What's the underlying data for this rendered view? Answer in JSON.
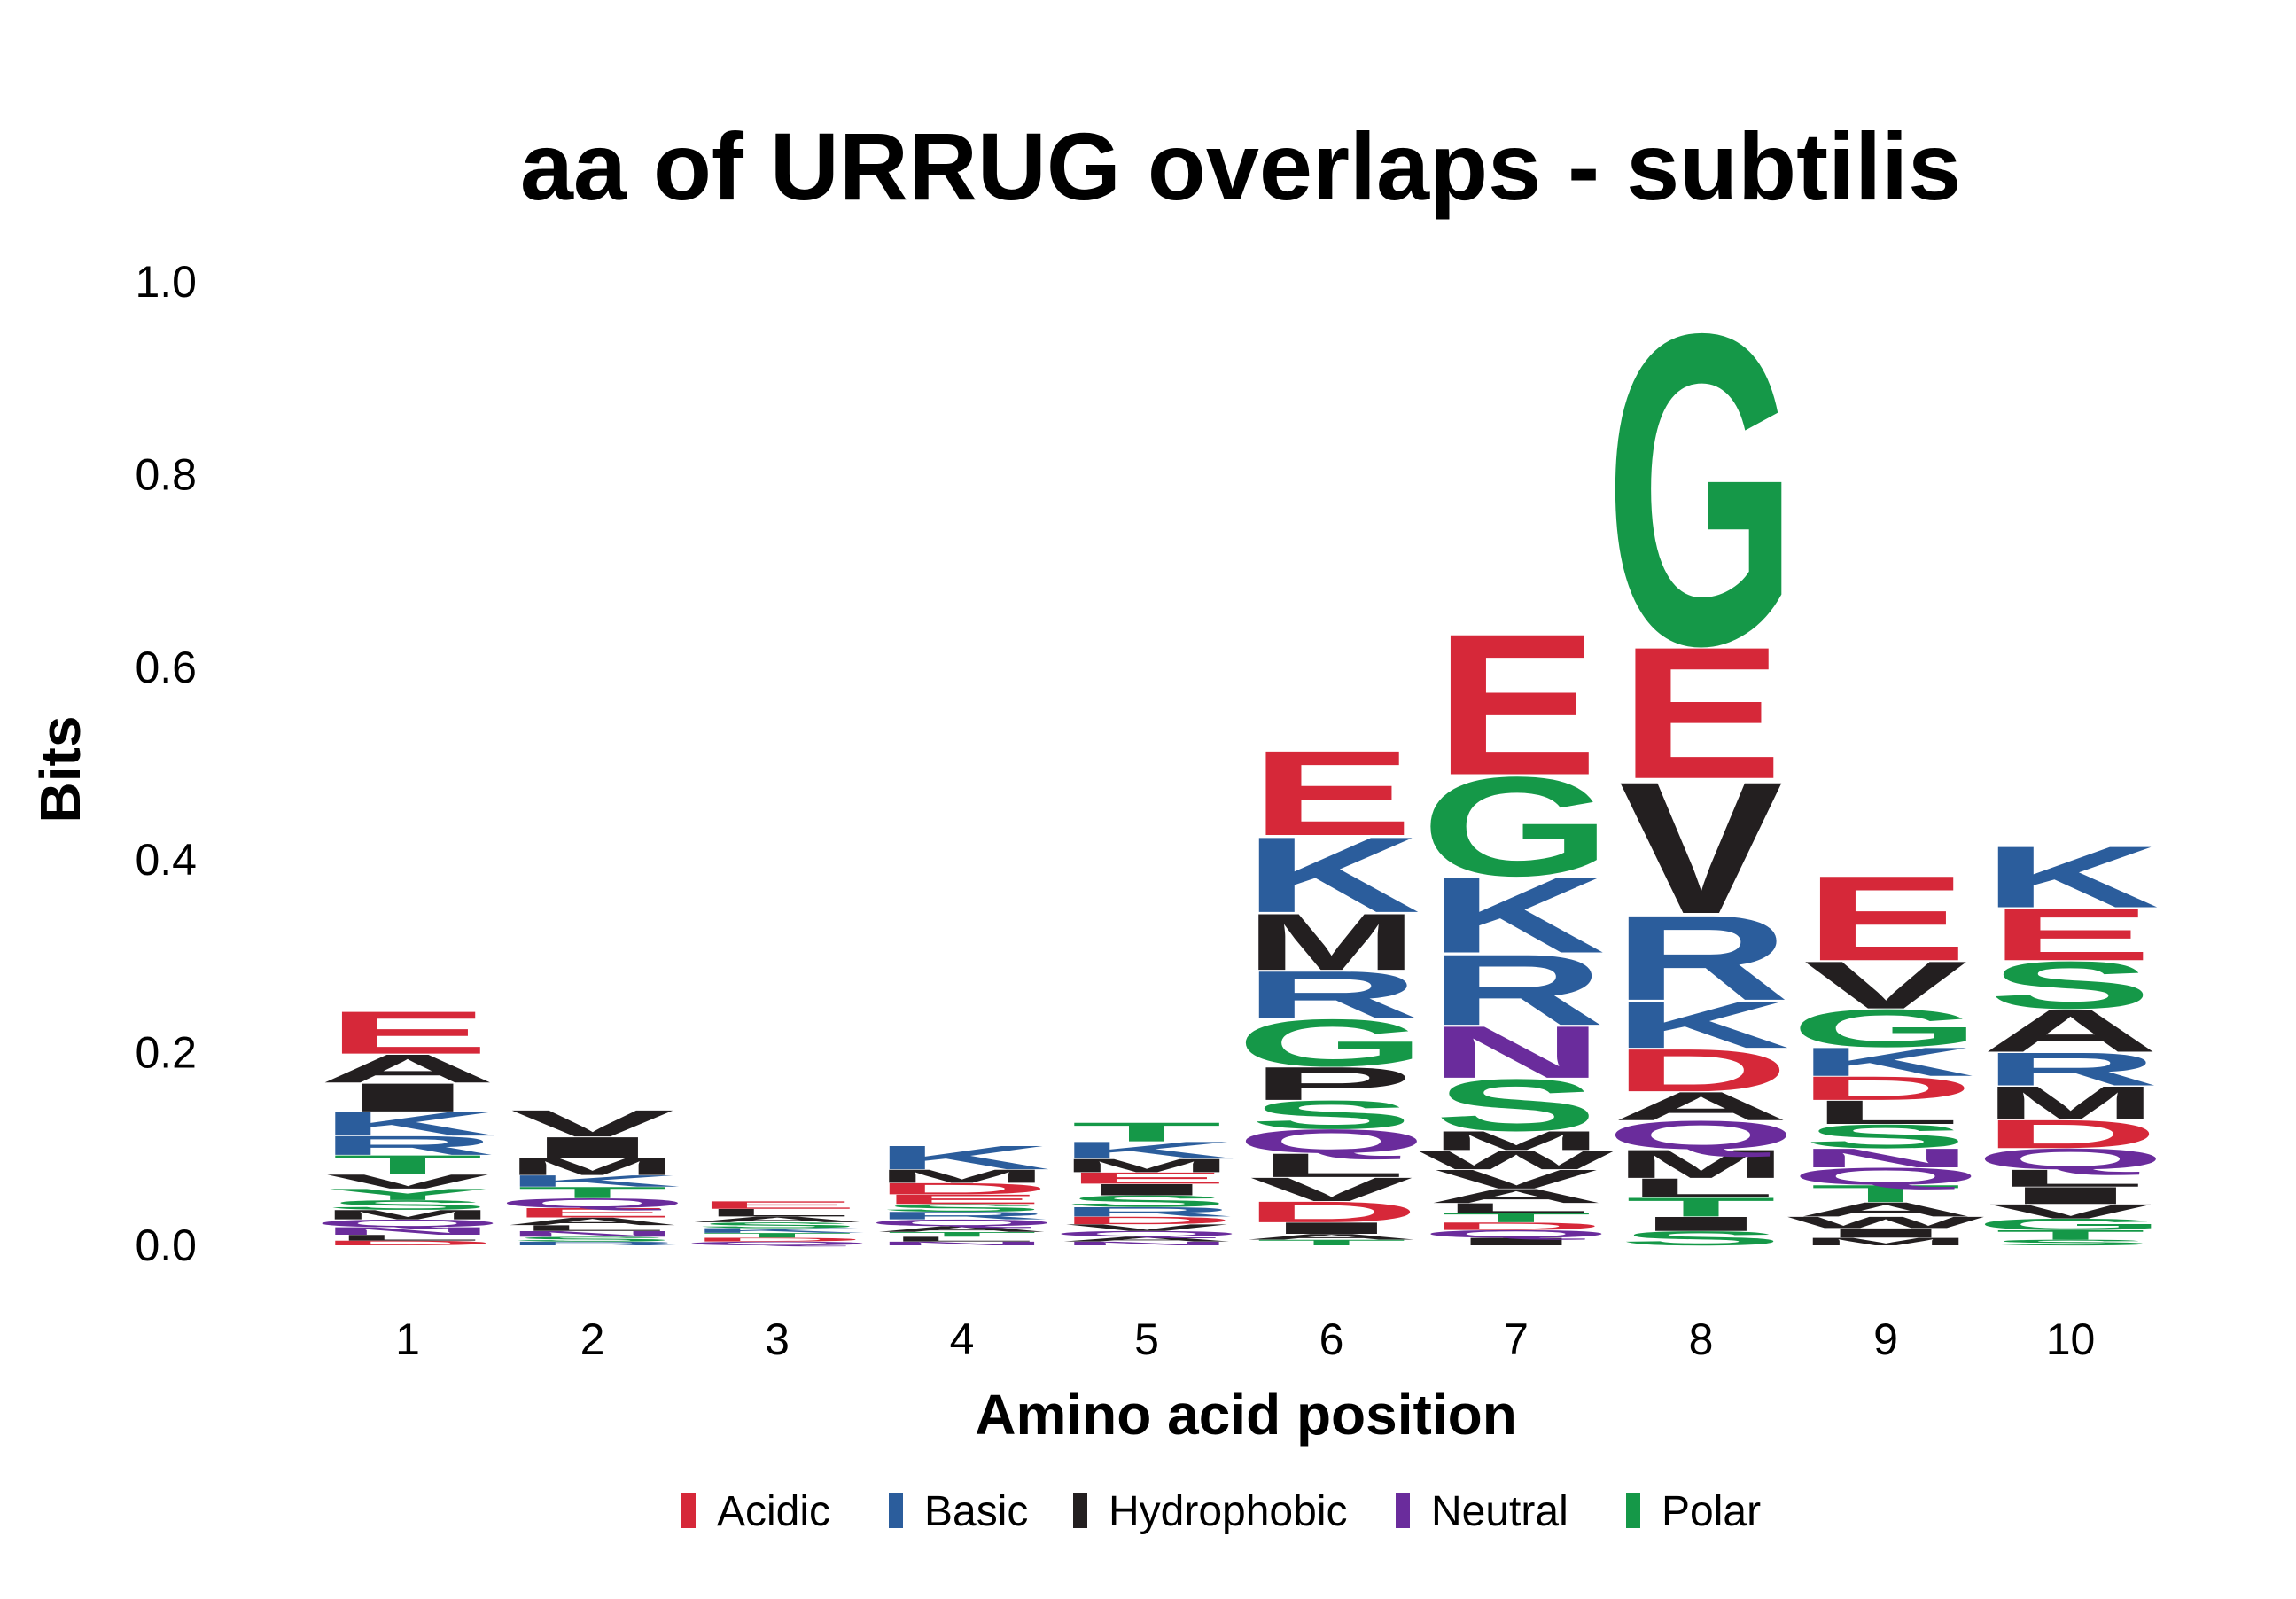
{
  "chart_data": {
    "type": "sequence-logo",
    "title": "aa of URRUG overlaps - subtilis",
    "xlabel": "Amino acid position",
    "ylabel": "Bits",
    "ylim": [
      0,
      1.0
    ],
    "yticks": [
      "0.0",
      "0.2",
      "0.4",
      "0.6",
      "0.8",
      "1.0"
    ],
    "ytick_values": [
      0.0,
      0.2,
      0.4,
      0.6,
      0.8,
      1.0
    ],
    "categories": [
      "1",
      "2",
      "3",
      "4",
      "5",
      "6",
      "7",
      "8",
      "9",
      "10"
    ],
    "grid": false,
    "legend_position": "bottom",
    "classes": [
      {
        "name": "Acidic",
        "color": "#d62839"
      },
      {
        "name": "Basic",
        "color": "#2b5d9c"
      },
      {
        "name": "Hydrophobic",
        "color": "#231f20"
      },
      {
        "name": "Neutral",
        "color": "#6a2c9c"
      },
      {
        "name": "Polar",
        "color": "#159848"
      }
    ],
    "residue_classes": {
      "D": "Acidic",
      "E": "Acidic",
      "K": "Basic",
      "R": "Basic",
      "H": "Basic",
      "A": "Hydrophobic",
      "V": "Hydrophobic",
      "L": "Hydrophobic",
      "I": "Hydrophobic",
      "M": "Hydrophobic",
      "F": "Hydrophobic",
      "W": "Hydrophobic",
      "P": "Hydrophobic",
      "Q": "Neutral",
      "N": "Neutral",
      "G": "Polar",
      "S": "Polar",
      "T": "Polar",
      "C": "Polar",
      "Y": "Polar"
    },
    "positions": [
      {
        "position": "1",
        "letters": [
          {
            "aa": "E",
            "bits": 0.045
          },
          {
            "aa": "I",
            "bits": 0.03
          },
          {
            "aa": "A",
            "bits": 0.03
          },
          {
            "aa": "K",
            "bits": 0.025
          },
          {
            "aa": "T",
            "bits": 0.02
          },
          {
            "aa": "R",
            "bits": 0.02
          },
          {
            "aa": "V",
            "bits": 0.015
          },
          {
            "aa": "Y",
            "bits": 0.012
          },
          {
            "aa": "M",
            "bits": 0.01
          },
          {
            "aa": "S",
            "bits": 0.01
          },
          {
            "aa": "N",
            "bits": 0.008
          },
          {
            "aa": "Q",
            "bits": 0.008
          },
          {
            "aa": "L",
            "bits": 0.006
          },
          {
            "aa": "D",
            "bits": 0.005
          }
        ]
      },
      {
        "position": "2",
        "letters": [
          {
            "aa": "V",
            "bits": 0.028
          },
          {
            "aa": "I",
            "bits": 0.022
          },
          {
            "aa": "M",
            "bits": 0.018
          },
          {
            "aa": "T",
            "bits": 0.012
          },
          {
            "aa": "K",
            "bits": 0.012
          },
          {
            "aa": "E",
            "bits": 0.01
          },
          {
            "aa": "Q",
            "bits": 0.01
          },
          {
            "aa": "A",
            "bits": 0.008
          },
          {
            "aa": "N",
            "bits": 0.006
          },
          {
            "aa": "L",
            "bits": 0.006
          },
          {
            "aa": "S",
            "bits": 0.005
          },
          {
            "aa": "R",
            "bits": 0.004
          }
        ]
      },
      {
        "position": "3",
        "letters": [
          {
            "aa": "L",
            "bits": 0.008
          },
          {
            "aa": "E",
            "bits": 0.008
          },
          {
            "aa": "S",
            "bits": 0.006
          },
          {
            "aa": "A",
            "bits": 0.006
          },
          {
            "aa": "T",
            "bits": 0.005
          },
          {
            "aa": "K",
            "bits": 0.005
          },
          {
            "aa": "Q",
            "bits": 0.004
          },
          {
            "aa": "D",
            "bits": 0.004
          }
        ]
      },
      {
        "position": "4",
        "letters": [
          {
            "aa": "K",
            "bits": 0.025
          },
          {
            "aa": "M",
            "bits": 0.014
          },
          {
            "aa": "D",
            "bits": 0.012
          },
          {
            "aa": "E",
            "bits": 0.01
          },
          {
            "aa": "R",
            "bits": 0.008
          },
          {
            "aa": "S",
            "bits": 0.008
          },
          {
            "aa": "Q",
            "bits": 0.007
          },
          {
            "aa": "A",
            "bits": 0.006
          },
          {
            "aa": "L",
            "bits": 0.005
          },
          {
            "aa": "T",
            "bits": 0.005
          },
          {
            "aa": "N",
            "bits": 0.004
          }
        ]
      },
      {
        "position": "5",
        "letters": [
          {
            "aa": "T",
            "bits": 0.02
          },
          {
            "aa": "K",
            "bits": 0.018
          },
          {
            "aa": "S",
            "bits": 0.012
          },
          {
            "aa": "M",
            "bits": 0.014
          },
          {
            "aa": "I",
            "bits": 0.012
          },
          {
            "aa": "E",
            "bits": 0.012
          },
          {
            "aa": "R",
            "bits": 0.01
          },
          {
            "aa": "D",
            "bits": 0.008
          },
          {
            "aa": "V",
            "bits": 0.007
          },
          {
            "aa": "Q",
            "bits": 0.006
          },
          {
            "aa": "A",
            "bits": 0.005
          },
          {
            "aa": "N",
            "bits": 0.004
          }
        ]
      },
      {
        "position": "6",
        "letters": [
          {
            "aa": "E",
            "bits": 0.09
          },
          {
            "aa": "K",
            "bits": 0.08
          },
          {
            "aa": "M",
            "bits": 0.06
          },
          {
            "aa": "G",
            "bits": 0.05
          },
          {
            "aa": "R",
            "bits": 0.05
          },
          {
            "aa": "S",
            "bits": 0.03
          },
          {
            "aa": "P",
            "bits": 0.035
          },
          {
            "aa": "V",
            "bits": 0.025
          },
          {
            "aa": "L",
            "bits": 0.025
          },
          {
            "aa": "Q",
            "bits": 0.025
          },
          {
            "aa": "D",
            "bits": 0.022
          },
          {
            "aa": "I",
            "bits": 0.012
          },
          {
            "aa": "T",
            "bits": 0.006
          },
          {
            "aa": "A",
            "bits": 0.006
          }
        ]
      },
      {
        "position": "7",
        "letters": [
          {
            "aa": "E",
            "bits": 0.15
          },
          {
            "aa": "G",
            "bits": 0.105
          },
          {
            "aa": "K",
            "bits": 0.08
          },
          {
            "aa": "R",
            "bits": 0.075
          },
          {
            "aa": "S",
            "bits": 0.055
          },
          {
            "aa": "N",
            "bits": 0.055
          },
          {
            "aa": "V",
            "bits": 0.02
          },
          {
            "aa": "W",
            "bits": 0.02
          },
          {
            "aa": "M",
            "bits": 0.02
          },
          {
            "aa": "A",
            "bits": 0.015
          },
          {
            "aa": "T",
            "bits": 0.01
          },
          {
            "aa": "L",
            "bits": 0.01
          },
          {
            "aa": "I",
            "bits": 0.008
          },
          {
            "aa": "Q",
            "bits": 0.008
          },
          {
            "aa": "D",
            "bits": 0.008
          }
        ]
      },
      {
        "position": "8",
        "letters": [
          {
            "aa": "G",
            "bits": 0.33
          },
          {
            "aa": "V",
            "bits": 0.14
          },
          {
            "aa": "E",
            "bits": 0.14
          },
          {
            "aa": "R",
            "bits": 0.09
          },
          {
            "aa": "K",
            "bits": 0.05
          },
          {
            "aa": "D",
            "bits": 0.045
          },
          {
            "aa": "M",
            "bits": 0.03
          },
          {
            "aa": "Q",
            "bits": 0.03
          },
          {
            "aa": "A",
            "bits": 0.03
          },
          {
            "aa": "T",
            "bits": 0.02
          },
          {
            "aa": "S",
            "bits": 0.015
          },
          {
            "aa": "L",
            "bits": 0.02
          },
          {
            "aa": "I",
            "bits": 0.015
          }
        ]
      },
      {
        "position": "9",
        "letters": [
          {
            "aa": "E",
            "bits": 0.09
          },
          {
            "aa": "V",
            "bits": 0.05
          },
          {
            "aa": "G",
            "bits": 0.04
          },
          {
            "aa": "K",
            "bits": 0.03
          },
          {
            "aa": "S",
            "bits": 0.025
          },
          {
            "aa": "L",
            "bits": 0.025
          },
          {
            "aa": "D",
            "bits": 0.025
          },
          {
            "aa": "T",
            "bits": 0.018
          },
          {
            "aa": "Q",
            "bits": 0.018
          },
          {
            "aa": "N",
            "bits": 0.02
          },
          {
            "aa": "A",
            "bits": 0.015
          },
          {
            "aa": "W",
            "bits": 0.012
          },
          {
            "aa": "I",
            "bits": 0.01
          },
          {
            "aa": "M",
            "bits": 0.008
          }
        ]
      },
      {
        "position": "10",
        "letters": [
          {
            "aa": "K",
            "bits": 0.065
          },
          {
            "aa": "E",
            "bits": 0.055
          },
          {
            "aa": "S",
            "bits": 0.05
          },
          {
            "aa": "A",
            "bits": 0.045
          },
          {
            "aa": "M",
            "bits": 0.035
          },
          {
            "aa": "R",
            "bits": 0.035
          },
          {
            "aa": "D",
            "bits": 0.03
          },
          {
            "aa": "I",
            "bits": 0.018
          },
          {
            "aa": "L",
            "bits": 0.018
          },
          {
            "aa": "Q",
            "bits": 0.022
          },
          {
            "aa": "V",
            "bits": 0.015
          },
          {
            "aa": "T",
            "bits": 0.01
          },
          {
            "aa": "G",
            "bits": 0.012
          },
          {
            "aa": "S",
            "bits": 0.006
          }
        ]
      }
    ]
  }
}
